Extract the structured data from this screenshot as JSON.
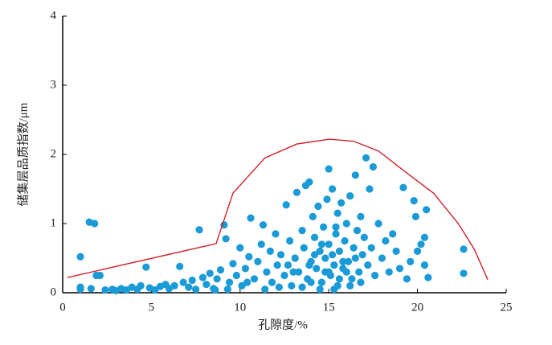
{
  "chart_data": {
    "type": "scatter",
    "x_label": "孔隙度/%",
    "y_label": "储集层品质指数/μm",
    "xlim": [
      0,
      25
    ],
    "xticks": [
      0,
      5,
      10,
      15,
      20,
      25
    ],
    "ylim": [
      0,
      4
    ],
    "yticks": [
      0,
      1,
      2,
      3,
      4
    ],
    "series": [
      {
        "type": "scatter",
        "color": "#1a9ad6",
        "x": [
          1.0,
          1.0,
          1.5,
          1.8,
          1.0,
          1.9,
          2.1,
          1.6,
          2.4,
          2.8,
          3.0,
          3.3,
          3.6,
          3.9,
          4.2,
          4.4,
          4.7,
          4.9,
          5.2,
          5.5,
          5.8,
          6.0,
          6.3,
          6.6,
          6.8,
          7.1,
          7.3,
          7.5,
          7.7,
          7.9,
          8.1,
          8.3,
          8.5,
          8.7,
          8.9,
          9.1,
          9.2,
          9.4,
          9.6,
          9.8,
          10.0,
          10.1,
          10.3,
          10.5,
          10.6,
          10.8,
          11.0,
          11.2,
          11.3,
          11.5,
          11.7,
          11.8,
          12.0,
          12.1,
          12.3,
          12.5,
          12.6,
          12.8,
          12.9,
          13.1,
          13.2,
          13.3,
          13.5,
          13.6,
          13.7,
          13.8,
          13.9,
          14.0,
          14.1,
          14.2,
          14.3,
          14.4,
          14.5,
          14.6,
          14.7,
          14.8,
          14.9,
          15.0,
          15.0,
          15.1,
          15.2,
          15.3,
          15.4,
          15.5,
          15.5,
          15.6,
          15.7,
          15.8,
          15.9,
          16.0,
          16.1,
          16.2,
          16.3,
          16.4,
          16.5,
          16.6,
          16.7,
          16.8,
          16.9,
          17.0,
          17.1,
          17.2,
          17.3,
          17.4,
          17.5,
          17.6,
          17.8,
          18.0,
          18.2,
          18.4,
          18.6,
          18.8,
          19.0,
          19.2,
          19.4,
          19.6,
          19.8,
          19.9,
          20.0,
          20.2,
          20.4,
          20.4,
          20.5,
          20.6,
          22.6,
          22.6,
          14.5,
          15.3,
          13.0,
          12.2,
          14.0,
          14.8,
          15.6,
          16.2,
          13.5,
          12.7,
          11.4,
          10.4,
          9.3,
          8.6,
          15.2,
          15.8,
          14.6,
          16.0,
          15.4,
          14.2,
          16.8,
          13.9,
          15.0,
          16.5
        ],
        "values": [
          0.52,
          0.05,
          1.02,
          1.0,
          0.08,
          0.25,
          0.25,
          0.06,
          0.04,
          0.05,
          0.03,
          0.06,
          0.04,
          0.08,
          0.05,
          0.1,
          0.37,
          0.07,
          0.04,
          0.09,
          0.12,
          0.06,
          0.1,
          0.38,
          0.15,
          0.08,
          0.18,
          0.05,
          0.91,
          0.22,
          0.12,
          0.28,
          0.06,
          0.2,
          0.33,
          0.98,
          0.78,
          0.15,
          0.42,
          0.25,
          0.65,
          0.1,
          0.35,
          0.52,
          1.08,
          0.2,
          0.45,
          0.7,
          0.98,
          0.3,
          0.6,
          0.15,
          0.85,
          0.4,
          0.55,
          0.25,
          1.27,
          0.75,
          0.1,
          0.5,
          1.45,
          0.3,
          0.9,
          0.65,
          1.55,
          0.2,
          1.6,
          0.45,
          1.1,
          0.8,
          0.35,
          1.25,
          0.6,
          0.15,
          0.95,
          0.5,
          1.35,
          1.79,
          0.7,
          0.25,
          1.5,
          0.4,
          0.85,
          1.15,
          0.1,
          0.6,
          1.3,
          0.35,
          0.75,
          1.0,
          0.45,
          1.4,
          0.2,
          0.65,
          1.7,
          0.9,
          0.3,
          1.1,
          0.55,
          0.8,
          1.95,
          0.4,
          1.5,
          0.65,
          1.82,
          0.25,
          1.0,
          0.5,
          0.75,
          0.3,
          0.85,
          0.6,
          0.35,
          1.52,
          0.2,
          0.45,
          1.33,
          1.1,
          0.6,
          0.7,
          0.8,
          0.4,
          1.2,
          0.22,
          0.63,
          0.28,
          0.05,
          0.05,
          0.3,
          0.08,
          0.15,
          0.3,
          0.2,
          0.1,
          0.08,
          0.4,
          0.05,
          0.15,
          0.05,
          0.04,
          0.55,
          0.45,
          0.7,
          0.3,
          0.95,
          0.55,
          0.15,
          0.4,
          0.3,
          0.5
        ]
      },
      {
        "type": "line",
        "color": "#d0212a",
        "x": [
          0.27,
          8.65,
          9.6,
          11.4,
          13.2,
          15.04,
          16.4,
          17.8,
          19.1,
          20.9,
          22.3,
          23.2,
          23.96
        ],
        "values": [
          0.22,
          0.71,
          1.44,
          1.95,
          2.15,
          2.22,
          2.19,
          2.05,
          1.79,
          1.44,
          1.0,
          0.63,
          0.19
        ]
      }
    ]
  }
}
